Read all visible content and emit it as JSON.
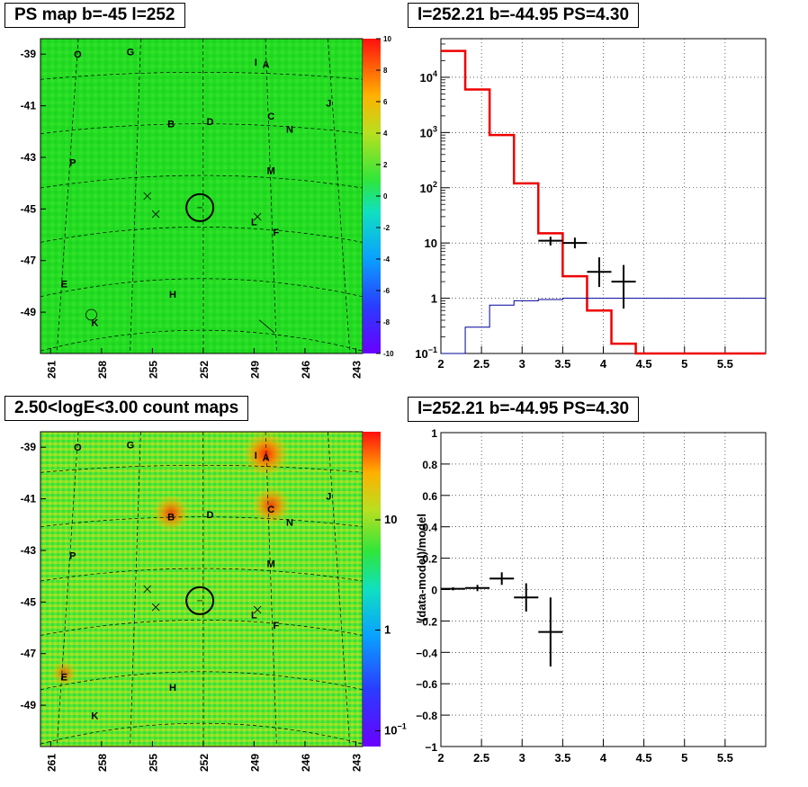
{
  "panels": {
    "map1_title": "PS map b=-45 l=252",
    "spec_title": "l=252.21 b=-44.95 PS=4.30",
    "map2_title": "2.50<logE<3.00 count maps",
    "resid_title": "l=252.21 b=-44.95 PS=4.30"
  },
  "colors": {
    "model_red": "#ee0000",
    "aux_blue": "#000099",
    "map_green": "#22dd22",
    "map2_bg": "#5fe62f"
  },
  "chart_data": [
    {
      "type": "heatmap",
      "title": "PS map b=-45 l=252",
      "x_ticks": [
        "261",
        "258",
        "255",
        "252",
        "249",
        "246",
        "243"
      ],
      "y_ticks": [
        "-39",
        "-41",
        "-43",
        "-45",
        "-47",
        "-49"
      ],
      "xlim": [
        261,
        243
      ],
      "ylim": [
        -50.5,
        -38.5
      ],
      "colorbar_ticks": [
        "10",
        "8",
        "6",
        "4",
        "2",
        "0",
        "-2",
        "-4",
        "-6",
        "-8",
        "-10"
      ],
      "colorbar_range": [
        -10,
        10
      ],
      "source_labels": [
        {
          "t": "O",
          "l": 259.4,
          "b": -39.0
        },
        {
          "t": "G",
          "l": 256.3,
          "b": -38.9
        },
        {
          "t": "I",
          "l": 248.9,
          "b": -39.3
        },
        {
          "t": "A",
          "l": 248.3,
          "b": -39.4
        },
        {
          "t": "J",
          "l": 244.6,
          "b": -40.9
        },
        {
          "t": "B",
          "l": 253.9,
          "b": -41.7
        },
        {
          "t": "D",
          "l": 251.6,
          "b": -41.6
        },
        {
          "t": "C",
          "l": 248.0,
          "b": -41.4
        },
        {
          "t": "N",
          "l": 246.9,
          "b": -41.9
        },
        {
          "t": "P",
          "l": 259.7,
          "b": -43.2
        },
        {
          "t": "M",
          "l": 248.0,
          "b": -43.5
        },
        {
          "t": "L",
          "l": 249.0,
          "b": -45.5
        },
        {
          "t": "F",
          "l": 247.7,
          "b": -45.9
        },
        {
          "t": "E",
          "l": 260.2,
          "b": -47.9
        },
        {
          "t": "H",
          "l": 253.8,
          "b": -48.3
        },
        {
          "t": "K",
          "l": 258.4,
          "b": -49.4
        }
      ],
      "circle": {
        "l": 252.2,
        "b": -44.95
      },
      "crosses": [
        {
          "l": 255.3,
          "b": -44.5
        },
        {
          "l": 254.8,
          "b": -45.2
        },
        {
          "l": 248.8,
          "b": -45.3
        }
      ]
    },
    {
      "type": "line",
      "title": "l=252.21 b=-44.95 PS=4.30",
      "xlim": [
        2,
        6
      ],
      "ylim": [
        0.1,
        50000
      ],
      "yscale": "log",
      "x_ticks": [
        "2",
        "2.5",
        "3",
        "3.5",
        "4",
        "4.5",
        "5",
        "5.5"
      ],
      "y_ticks": [
        "10^-1",
        "1",
        "10",
        "10^2",
        "10^3",
        "10^4"
      ],
      "grid": true,
      "series": [
        {
          "color": "red",
          "edges": [
            2,
            2.3,
            2.6,
            2.9,
            3.2,
            3.5,
            3.8,
            4.1,
            4.4,
            6.0
          ],
          "values": [
            30000,
            6000,
            900,
            120,
            15,
            2.5,
            0.6,
            0.15,
            0.1
          ]
        },
        {
          "color": "blue",
          "edges": [
            2,
            2.3,
            2.6,
            2.9,
            3.2,
            3.5,
            6.0
          ],
          "values": [
            0.1,
            0.3,
            0.75,
            0.9,
            0.95,
            1.0
          ]
        }
      ],
      "points": [
        {
          "x": 3.35,
          "y": 11,
          "xerr": 0.15,
          "ylo": 9,
          "yhi": 13
        },
        {
          "x": 3.65,
          "y": 10,
          "xerr": 0.15,
          "ylo": 8,
          "yhi": 12.5
        },
        {
          "x": 3.95,
          "y": 3,
          "xerr": 0.15,
          "ylo": 1.6,
          "yhi": 5.5
        },
        {
          "x": 4.25,
          "y": 2,
          "xerr": 0.15,
          "ylo": 0.65,
          "yhi": 4
        }
      ]
    },
    {
      "type": "heatmap",
      "title": "2.50<logE<3.00 count maps",
      "x_ticks": [
        "261",
        "258",
        "255",
        "252",
        "249",
        "246",
        "243"
      ],
      "y_ticks": [
        "-39",
        "-41",
        "-43",
        "-45",
        "-47",
        "-49"
      ],
      "colorbar_ticks": [
        "10",
        "1",
        "10^-1"
      ],
      "colorbar_scale": "log",
      "bright_sources": [
        {
          "t": "A",
          "l": 248.3,
          "b": -39.4,
          "strength": 1.0
        },
        {
          "t": "C",
          "l": 248.0,
          "b": -41.4,
          "strength": 0.75
        },
        {
          "t": "B",
          "l": 253.9,
          "b": -41.7,
          "strength": 0.7
        },
        {
          "t": "E",
          "l": 260.2,
          "b": -47.9,
          "strength": 0.3
        }
      ]
    },
    {
      "type": "scatter",
      "title": "l=252.21 b=-44.95 PS=4.30",
      "ylabel": "(data-model)/model",
      "xlim": [
        2,
        6
      ],
      "ylim": [
        -1,
        1
      ],
      "x_ticks": [
        "2",
        "2.5",
        "3",
        "3.5",
        "4",
        "4.5",
        "5",
        "5.5"
      ],
      "y_ticks": [
        "1",
        "0.8",
        "0.6",
        "0.4",
        "0.2",
        "0",
        "−0.2",
        "−0.4",
        "−0.6",
        "−0.8",
        "−1"
      ],
      "grid": true,
      "points": [
        {
          "x": 2.15,
          "y": 0.005,
          "xerr": 0.15,
          "yerr": 0.01
        },
        {
          "x": 2.45,
          "y": 0.01,
          "xerr": 0.15,
          "yerr": 0.02
        },
        {
          "x": 2.75,
          "y": 0.07,
          "xerr": 0.15,
          "yerr": 0.04
        },
        {
          "x": 3.05,
          "y": -0.05,
          "xerr": 0.15,
          "yerr": 0.09
        },
        {
          "x": 3.35,
          "y": -0.27,
          "xerr": 0.15,
          "yerr": 0.22
        }
      ]
    }
  ]
}
